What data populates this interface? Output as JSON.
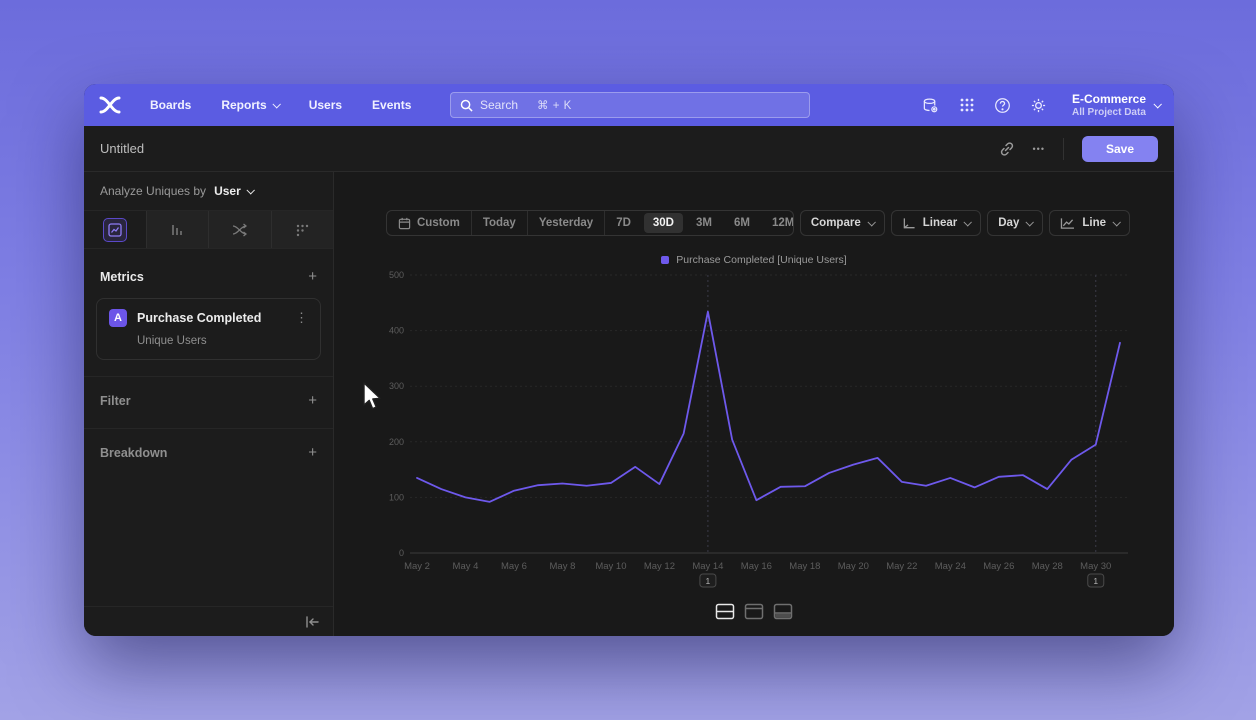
{
  "nav": {
    "items": [
      "Boards",
      "Reports",
      "Users",
      "Events"
    ],
    "search": {
      "placeholder": "Search",
      "shortcut": "⌘ + K"
    },
    "project": {
      "name": "E-Commerce",
      "scope": "All Project Data"
    }
  },
  "header": {
    "title": "Untitled",
    "save_label": "Save",
    "more_label": "•••"
  },
  "sidebar": {
    "analyze_prefix": "Analyze Uniques by",
    "analyze_value": "User",
    "metrics_label": "Metrics",
    "filter_label": "Filter",
    "breakdown_label": "Breakdown",
    "add_label": "+",
    "metric": {
      "badge": "A",
      "name": "Purchase Completed",
      "subtitle": "Unique Users",
      "kebab": "⋮"
    }
  },
  "toolbar": {
    "ranges": [
      "Custom",
      "Today",
      "Yesterday",
      "7D",
      "30D",
      "3M",
      "6M",
      "12M"
    ],
    "active_range": "30D",
    "compare_label": "Compare",
    "scale_label": "Linear",
    "interval_label": "Day",
    "chart_type_label": "Line"
  },
  "chart_data": {
    "type": "line",
    "legend_position": "top-center",
    "grid": true,
    "ylim": [
      0,
      500
    ],
    "yticks": [
      0,
      100,
      200,
      300,
      400,
      500
    ],
    "x": [
      "May 2",
      "May 3",
      "May 4",
      "May 5",
      "May 6",
      "May 7",
      "May 8",
      "May 9",
      "May 10",
      "May 11",
      "May 12",
      "May 13",
      "May 14",
      "May 15",
      "May 16",
      "May 17",
      "May 18",
      "May 19",
      "May 20",
      "May 21",
      "May 22",
      "May 23",
      "May 24",
      "May 25",
      "May 26",
      "May 27",
      "May 28",
      "May 29",
      "May 30",
      "May 31"
    ],
    "x_tick_labels": [
      "May 2",
      "May 4",
      "May 6",
      "May 8",
      "May 10",
      "May 12",
      "May 14",
      "May 16",
      "May 18",
      "May 20",
      "May 22",
      "May 24",
      "May 26",
      "May 28",
      "May 30"
    ],
    "series": [
      {
        "name": "Purchase Completed [Unique Users]",
        "color": "#6e59ec",
        "values": [
          135,
          115,
          100,
          92,
          112,
          122,
          125,
          121,
          126,
          155,
          124,
          215,
          434,
          204,
          95,
          119,
          120,
          144,
          159,
          171,
          128,
          121,
          135,
          118,
          137,
          140,
          115,
          168,
          195,
          378
        ]
      }
    ],
    "annotations": [
      {
        "label": "1",
        "x": "May 14"
      },
      {
        "label": "1",
        "x": "May 30"
      }
    ]
  }
}
